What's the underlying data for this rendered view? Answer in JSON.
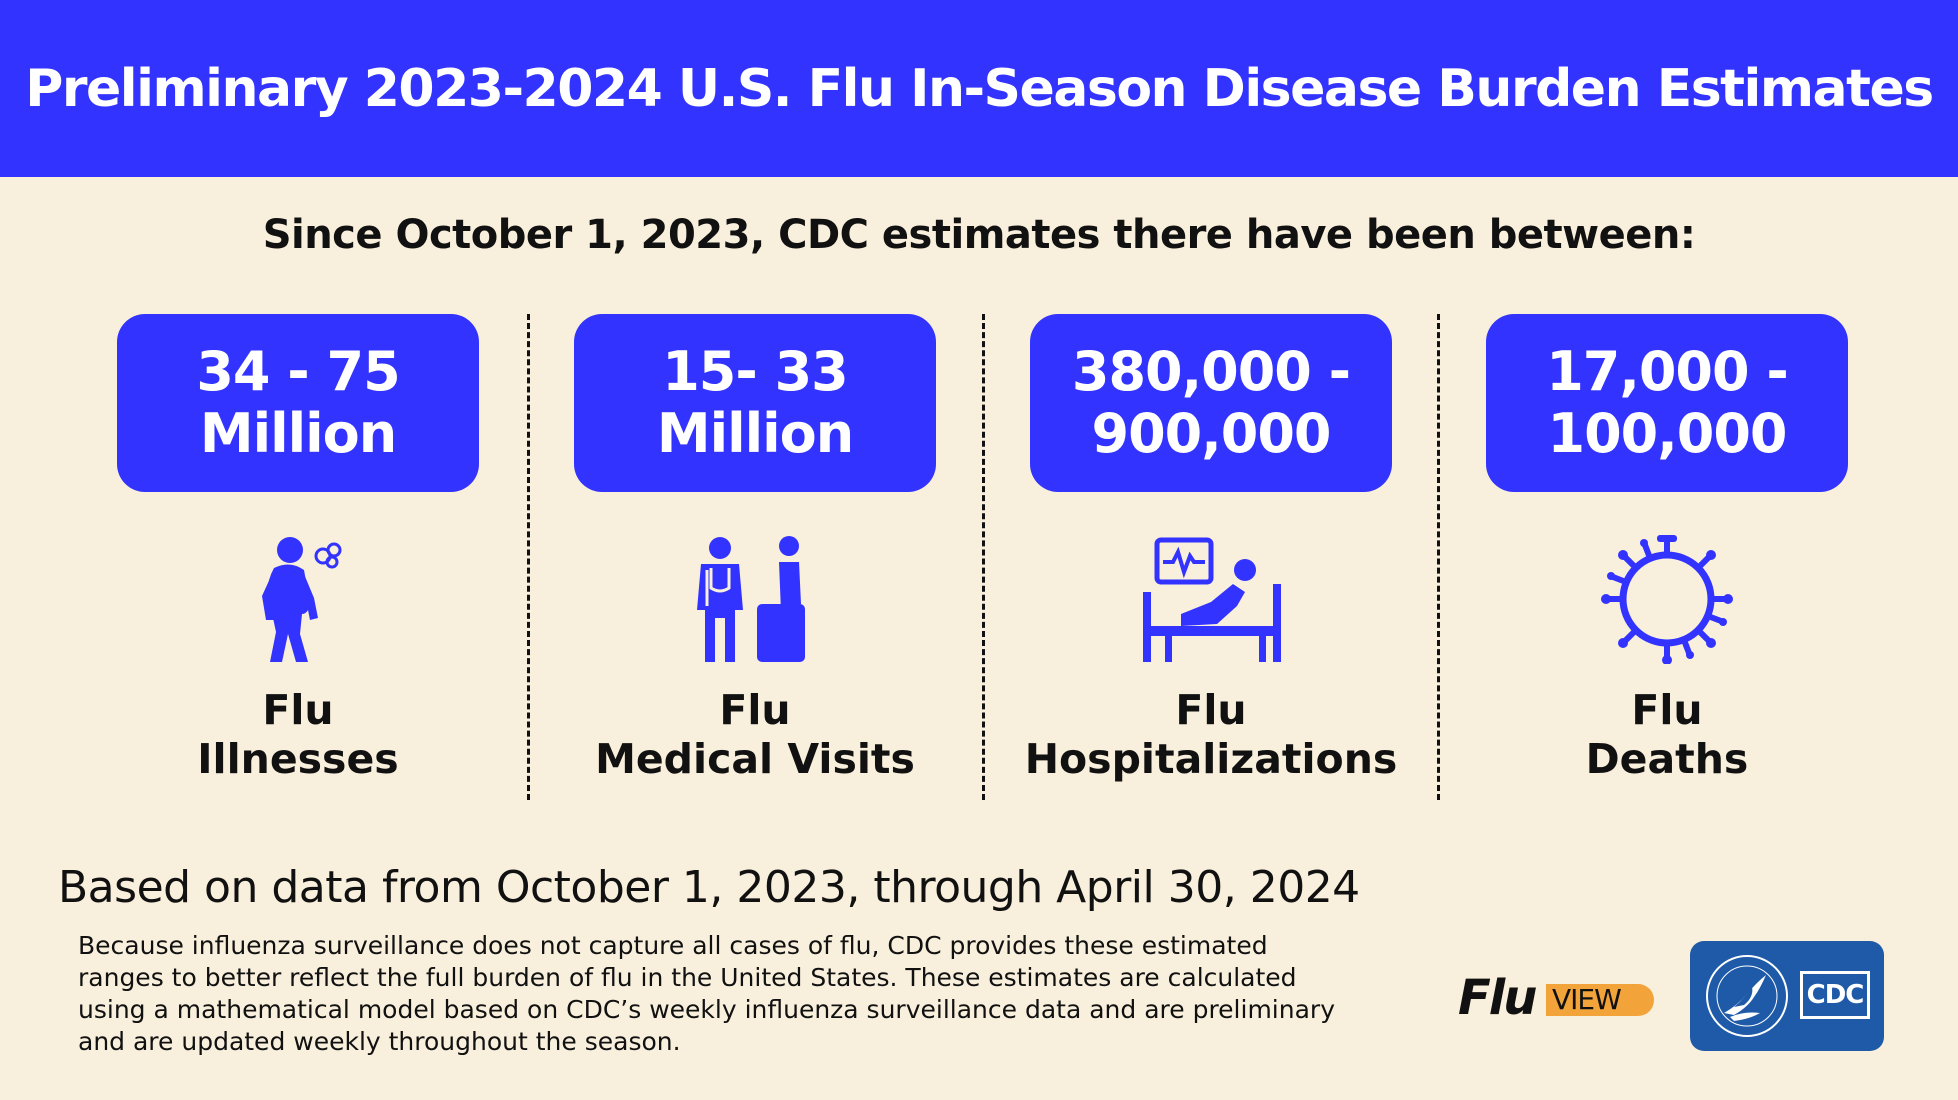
{
  "title": "Preliminary 2023-2024 U.S. Flu In-Season Disease Burden Estimates",
  "subtitle": "Since October 1, 2023, CDC estimates there have been between:",
  "stats": [
    {
      "line1": "34 - 75",
      "line2": "Million",
      "label1": "Flu",
      "label2": "Illnesses",
      "icon": "sick-person-icon"
    },
    {
      "line1": "15- 33",
      "line2": "Million",
      "label1": "Flu",
      "label2": "Medical Visits",
      "icon": "doctor-patient-icon"
    },
    {
      "line1": "380,000 -",
      "line2": "900,000",
      "label1": "Flu",
      "label2": "Hospitalizations",
      "icon": "hospital-bed-icon"
    },
    {
      "line1": "17,000 -",
      "line2": "100,000",
      "label1": "Flu",
      "label2": "Deaths",
      "icon": "virus-icon"
    }
  ],
  "data_note": "Based on data from October 1, 2023, through April 30, 2024",
  "footnote": "Because influenza surveillance does not capture all cases of flu, CDC provides these estimated ranges to better reflect the full burden of flu in the United States. These estimates are calculated using a mathematical model based on CDC’s weekly influenza surveillance data and are preliminary and are updated weekly throughout the season.",
  "logos": {
    "fluview_flu": "Flu",
    "fluview_view": "VIEW",
    "cdc": "CDC"
  },
  "colors": {
    "accent_blue": "#3333ff",
    "background": "#f8efdc",
    "fluview_orange": "#f2a33a",
    "cdc_blue": "#1e5aa8"
  }
}
